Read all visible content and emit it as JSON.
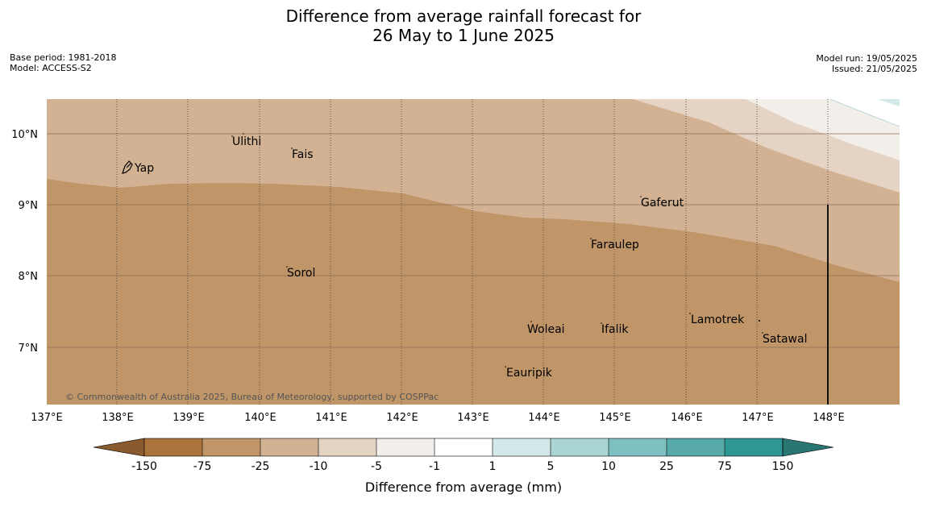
{
  "title": {
    "line1": "Difference from average rainfall forecast for",
    "line2": "26 May to 1 June 2025"
  },
  "meta_left": {
    "base_period": "Base period: 1981-2018",
    "model": "Model: ACCESS-S2"
  },
  "meta_right": {
    "model_run": "Model run: 19/05/2025",
    "issued": "Issued: 21/05/2025"
  },
  "map": {
    "lat_labels": [
      "10°N",
      "9°N",
      "8°N",
      "7°N"
    ],
    "lon_labels": [
      "137°E",
      "138°E",
      "139°E",
      "140°E",
      "141°E",
      "142°E",
      "143°E",
      "144°E",
      "145°E",
      "146°E",
      "147°E",
      "148°E"
    ],
    "places": [
      "Yap",
      "Ulithi",
      "Fais",
      "Gaferut",
      "Faraulep",
      "Sorol",
      "Woleai",
      "Ifalik",
      "Lamotrek",
      "Satawal",
      "Eauripik"
    ],
    "copyright": "© Commonwealth of Australia 2025, Bureau of Meteorology, supported by COSPPac",
    "colors": {
      "band_-25_-10": "#c09568",
      "band_-10_-5": "#d2b293",
      "band_-5_-1": "#e5d3c3",
      "band_-1_1": "#f2eee9",
      "band_1_5": "#d3e8e8"
    }
  },
  "legend": {
    "ticks": [
      "-150",
      "-75",
      "-25",
      "-10",
      "-5",
      "-1",
      "1",
      "5",
      "10",
      "25",
      "75",
      "150"
    ],
    "label": "Difference from average (mm)",
    "colors": [
      "#8a5a2f",
      "#ab743c",
      "#c09568",
      "#d2b293",
      "#e5d3c3",
      "#f2eee9",
      "#ffffff",
      "#d3e8e8",
      "#a9d6d5",
      "#7ec0bf",
      "#57aaa8",
      "#2e9693",
      "#287773"
    ]
  }
}
